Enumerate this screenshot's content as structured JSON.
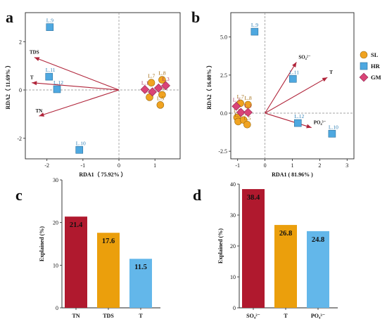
{
  "colors": {
    "SL": "#f0a321",
    "HR": "#4ea8e0",
    "GM": "#d94477",
    "arrow": "#b0243a",
    "bar_red": "#b0192e",
    "bar_orange": "#eb9f0c",
    "bar_blue": "#63b7ea"
  },
  "chart_data": [
    {
      "id": "a",
      "type": "scatter",
      "panel_label": "a",
      "xlabel": "RDA1（ 75.92% ）",
      "ylabel": "RDA2（ 11.69% ）",
      "xlim": [
        -2.6,
        1.7
      ],
      "ylim": [
        -2.85,
        3.2
      ],
      "xticks": [
        -2,
        -1,
        0,
        1
      ],
      "yticks": [
        -2,
        0,
        2
      ],
      "points": [
        {
          "label": "L.9",
          "group": "HR",
          "x": -1.92,
          "y": 2.6
        },
        {
          "label": "L.11",
          "group": "HR",
          "x": -1.94,
          "y": 0.55
        },
        {
          "label": "L.12",
          "group": "HR",
          "x": -1.72,
          "y": 0.03
        },
        {
          "label": "L.10",
          "group": "HR",
          "x": -1.1,
          "y": -2.48
        },
        {
          "label": "L.7",
          "group": "SL",
          "x": 0.9,
          "y": 0.3
        },
        {
          "label": "L.8",
          "group": "SL",
          "x": 1.2,
          "y": 0.42
        },
        {
          "label": "L.4",
          "group": "SL",
          "x": 0.85,
          "y": -0.3
        },
        {
          "label": "L.6",
          "group": "SL",
          "x": 1.2,
          "y": -0.2
        },
        {
          "label": "L.5",
          "group": "SL",
          "x": 1.15,
          "y": -0.62
        },
        {
          "label": "L.1",
          "group": "GM",
          "x": 0.72,
          "y": 0.02
        },
        {
          "label": "",
          "group": "GM",
          "x": 0.93,
          "y": -0.08
        },
        {
          "label": "",
          "group": "GM",
          "x": 1.1,
          "y": 0.08
        },
        {
          "label": "L.3",
          "group": "GM",
          "x": 1.3,
          "y": 0.18
        }
      ],
      "vectors": [
        {
          "label": "TDS",
          "x": -2.35,
          "y": 1.35
        },
        {
          "label": "T",
          "x": -2.42,
          "y": 0.3
        },
        {
          "label": "TN",
          "x": -2.22,
          "y": -1.08
        }
      ]
    },
    {
      "id": "b",
      "type": "scatter",
      "panel_label": "b",
      "xlabel": "RDA1 ( 81.96% )",
      "ylabel": "RDA2（ 16.08% ）",
      "xlim": [
        -1.25,
        3.25
      ],
      "ylim": [
        -3.0,
        6.6
      ],
      "xticks": [
        -1,
        0,
        1,
        2,
        3
      ],
      "yticks": [
        -2.5,
        0.0,
        2.5,
        5.0
      ],
      "points": [
        {
          "label": "L.9",
          "group": "HR",
          "x": -0.38,
          "y": 5.35
        },
        {
          "label": "L.11",
          "group": "HR",
          "x": 1.02,
          "y": 2.25
        },
        {
          "label": "L.12",
          "group": "HR",
          "x": 1.2,
          "y": -0.65
        },
        {
          "label": "L.10",
          "group": "HR",
          "x": 2.45,
          "y": -1.35
        },
        {
          "label": "L.7",
          "group": "SL",
          "x": -0.9,
          "y": 0.65
        },
        {
          "label": "L.8",
          "group": "SL",
          "x": -0.62,
          "y": 0.55
        },
        {
          "label": "L.6",
          "group": "SL",
          "x": -1.02,
          "y": -0.28
        },
        {
          "label": "L.4",
          "group": "SL",
          "x": -0.98,
          "y": -0.55
        },
        {
          "label": "L.2",
          "group": "SL",
          "x": -0.78,
          "y": -0.45
        },
        {
          "label": "L.5",
          "group": "SL",
          "x": -0.65,
          "y": -0.75
        },
        {
          "label": "L.3",
          "group": "GM",
          "x": -1.05,
          "y": 0.45
        },
        {
          "label": "",
          "group": "GM",
          "x": -0.88,
          "y": 0.05
        },
        {
          "label": "L.1",
          "group": "GM",
          "x": -0.62,
          "y": 0.05
        }
      ],
      "vectors": [
        {
          "label": "SO₄²⁻",
          "x": 1.15,
          "y": 3.35
        },
        {
          "label": "T",
          "x": 2.28,
          "y": 2.35
        },
        {
          "label": "PO₄³⁻",
          "x": 1.7,
          "y": -0.95
        }
      ],
      "legend": {
        "position": "right",
        "items": [
          {
            "label": "SL",
            "group": "SL"
          },
          {
            "label": "HR",
            "group": "HR"
          },
          {
            "label": "GM",
            "group": "GM"
          }
        ]
      }
    },
    {
      "id": "c",
      "type": "bar",
      "panel_label": "c",
      "ylabel": "Explained (%)",
      "ylim": [
        0,
        30
      ],
      "yticks": [
        0,
        10,
        20,
        30
      ],
      "categories": [
        "TN",
        "TDS",
        "T"
      ],
      "values": [
        21.4,
        17.6,
        11.5
      ],
      "value_labels": [
        "21.4",
        "17.6",
        "11.5"
      ],
      "bar_colors": [
        "#b0192e",
        "#eb9f0c",
        "#63b7ea"
      ]
    },
    {
      "id": "d",
      "type": "bar",
      "panel_label": "d",
      "ylabel": "Explained (%)",
      "ylim": [
        0,
        40
      ],
      "yticks": [
        0,
        10,
        20,
        30,
        40
      ],
      "categories": [
        "SO₄²⁻",
        "T",
        "PO₄³⁻"
      ],
      "values": [
        38.4,
        26.8,
        24.8
      ],
      "value_labels": [
        "38.4",
        "26.8",
        "24.8"
      ],
      "bar_colors": [
        "#b0192e",
        "#eb9f0c",
        "#63b7ea"
      ]
    }
  ]
}
